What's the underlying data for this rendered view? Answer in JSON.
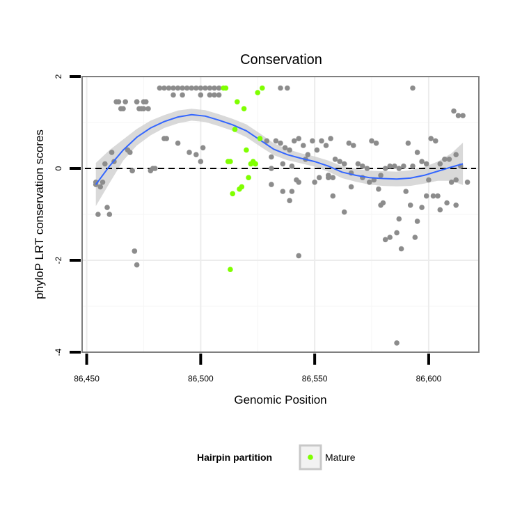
{
  "chart_data": {
    "type": "scatter",
    "title": "Conservation",
    "xlabel": "Genomic Position",
    "ylabel": "phyloP LRT conservation scores",
    "xlim": [
      86448,
      86622
    ],
    "ylim": [
      -4.0,
      2.0
    ],
    "x_ticks": [
      86450,
      86500,
      86550,
      86600
    ],
    "x_tick_labels": [
      "86,450",
      "86,500",
      "86,550",
      "86,600"
    ],
    "y_ticks": [
      -4,
      -2,
      0,
      2
    ],
    "y_tick_labels": [
      "-4",
      "-2",
      "0",
      "2"
    ],
    "grid": true,
    "reference_line": {
      "y": 0,
      "style": "dashed"
    },
    "colors": {
      "other": "#8c8c8c",
      "mature": "#7fff00",
      "smooth": "#3366ff",
      "band": "#cccccc"
    },
    "legend": {
      "title": "Hairpin partition",
      "position": "bottom",
      "entries": [
        {
          "label": "Mature",
          "color": "#7fff00"
        }
      ]
    },
    "smooth": {
      "x": [
        86454,
        86460,
        86466,
        86472,
        86478,
        86484,
        86490,
        86496,
        86502,
        86508,
        86514,
        86520,
        86526,
        86532,
        86538,
        86544,
        86550,
        86556,
        86562,
        86568,
        86574,
        86580,
        86586,
        86592,
        86598,
        86604,
        86610,
        86615
      ],
      "y": [
        -0.35,
        0.05,
        0.4,
        0.68,
        0.88,
        1.02,
        1.12,
        1.17,
        1.14,
        1.05,
        0.95,
        0.82,
        0.62,
        0.42,
        0.3,
        0.22,
        0.15,
        0.05,
        -0.08,
        -0.15,
        -0.2,
        -0.22,
        -0.23,
        -0.21,
        -0.15,
        -0.06,
        0.03,
        0.1
      ],
      "lower": [
        -0.82,
        -0.32,
        0.17,
        0.5,
        0.72,
        0.88,
        0.98,
        1.04,
        1.01,
        0.92,
        0.82,
        0.68,
        0.48,
        0.29,
        0.18,
        0.11,
        0.04,
        -0.07,
        -0.21,
        -0.29,
        -0.35,
        -0.38,
        -0.39,
        -0.38,
        -0.33,
        -0.27,
        -0.27,
        -0.36
      ],
      "upper": [
        0.12,
        0.4,
        0.63,
        0.86,
        1.04,
        1.16,
        1.26,
        1.3,
        1.27,
        1.18,
        1.08,
        0.96,
        0.76,
        0.55,
        0.42,
        0.33,
        0.26,
        0.17,
        0.05,
        -0.01,
        -0.05,
        -0.06,
        -0.07,
        -0.04,
        0.03,
        0.15,
        0.33,
        0.56
      ]
    },
    "series": [
      {
        "group": "other",
        "x": [
          86454,
          86455,
          86456,
          86457,
          86458,
          86459,
          86460,
          86461,
          86462,
          86463,
          86464,
          86465,
          86466,
          86467,
          86468,
          86469,
          86470,
          86470,
          86471,
          86472,
          86472,
          86473,
          86474,
          86475,
          86475,
          86476,
          86477,
          86478,
          86479,
          86480,
          86471,
          86472,
          86484,
          86485,
          86482,
          86484,
          86486,
          86488,
          86490,
          86492,
          86494,
          86496,
          86498,
          86500,
          86502,
          86504,
          86506,
          86508,
          86488,
          86492,
          86500,
          86504,
          86506,
          86508,
          86498,
          86500,
          86501,
          86535,
          86538,
          86529,
          86531,
          86533,
          86535,
          86537,
          86539,
          86541,
          86543,
          86545,
          86547,
          86549,
          86551,
          86553,
          86555,
          86557,
          86559,
          86561,
          86563,
          86565,
          86567,
          86569,
          86571,
          86573,
          86575,
          86577,
          86579,
          86581,
          86583,
          86585,
          86587,
          86589,
          86591,
          86593,
          86595,
          86597,
          86599,
          86601,
          86603,
          86605,
          86607,
          86609,
          86611,
          86613,
          86615,
          86536,
          86540,
          86546,
          86556,
          86566,
          86571,
          86576,
          86593,
          86612,
          86614,
          86531,
          86536,
          86542,
          86550,
          86552,
          86558,
          86563,
          86566,
          86574,
          86578,
          86580,
          86586,
          86590,
          86594,
          86600,
          86604,
          86612,
          86617,
          86539,
          86540,
          86543,
          86556,
          86558,
          86579,
          86581,
          86583,
          86587,
          86588,
          86592,
          86595,
          86597,
          86599,
          86602,
          86605,
          86608,
          86610,
          86612,
          86543,
          86586,
          86454,
          86490,
          86495,
          86531
        ],
        "y": [
          -0.35,
          -1.0,
          -0.4,
          -0.3,
          0.1,
          -0.85,
          -1.0,
          0.35,
          0.15,
          1.45,
          1.45,
          1.3,
          1.3,
          1.45,
          0.4,
          0.35,
          -0.05,
          -0.05,
          -1.8,
          1.45,
          1.45,
          1.3,
          1.3,
          1.45,
          1.3,
          1.45,
          1.3,
          -0.05,
          0.0,
          0.0,
          -1.8,
          -2.1,
          0.65,
          0.65,
          1.75,
          1.75,
          1.75,
          1.75,
          1.75,
          1.75,
          1.75,
          1.75,
          1.75,
          1.75,
          1.75,
          1.75,
          1.75,
          1.75,
          1.6,
          1.6,
          1.6,
          1.6,
          1.6,
          1.6,
          0.3,
          0.15,
          0.45,
          1.75,
          1.75,
          0.6,
          0.25,
          0.6,
          0.55,
          0.45,
          0.4,
          0.6,
          0.65,
          0.5,
          0.3,
          0.6,
          0.4,
          0.6,
          0.5,
          0.65,
          0.2,
          0.15,
          0.1,
          0.55,
          0.5,
          0.1,
          0.05,
          0.0,
          0.6,
          0.55,
          -0.15,
          0.0,
          0.05,
          0.05,
          0.0,
          0.05,
          0.55,
          0.05,
          0.35,
          0.15,
          0.1,
          0.65,
          0.6,
          0.1,
          0.2,
          0.2,
          1.25,
          1.15,
          1.15,
          0.1,
          0.05,
          0.2,
          -0.15,
          -0.1,
          -0.2,
          -0.25,
          1.75,
          0.3,
          0.05,
          -0.35,
          -0.5,
          -0.25,
          -0.3,
          -0.2,
          -0.6,
          -0.95,
          -0.4,
          -0.3,
          -0.45,
          -0.75,
          -1.4,
          -0.5,
          -1.5,
          -0.25,
          -0.6,
          -0.8,
          -0.3,
          -0.7,
          -0.5,
          -0.3,
          -0.2,
          -0.2,
          -0.8,
          -1.55,
          -1.5,
          -1.1,
          -1.75,
          -0.8,
          -1.15,
          -0.85,
          -0.6,
          -0.6,
          -0.9,
          -0.75,
          -0.3,
          -0.25,
          -1.9,
          -3.8,
          -0.3,
          0.55,
          0.35,
          0.0
        ],
        "manual_skip": true
      },
      {
        "name": "Mature",
        "group": "mature",
        "x": [
          86510,
          86511,
          86512,
          86513,
          86514,
          86515,
          86516,
          86517,
          86518,
          86519,
          86520,
          86521,
          86522,
          86523,
          86524,
          86525,
          86526,
          86527,
          86513,
          86524
        ],
        "y": [
          1.75,
          1.75,
          0.15,
          -2.2,
          -0.55,
          0.85,
          1.45,
          -0.45,
          -0.4,
          1.3,
          0.4,
          -0.2,
          0.1,
          0.15,
          0.1,
          1.65,
          0.65,
          1.75,
          0.15,
          0.1
        ]
      }
    ]
  }
}
